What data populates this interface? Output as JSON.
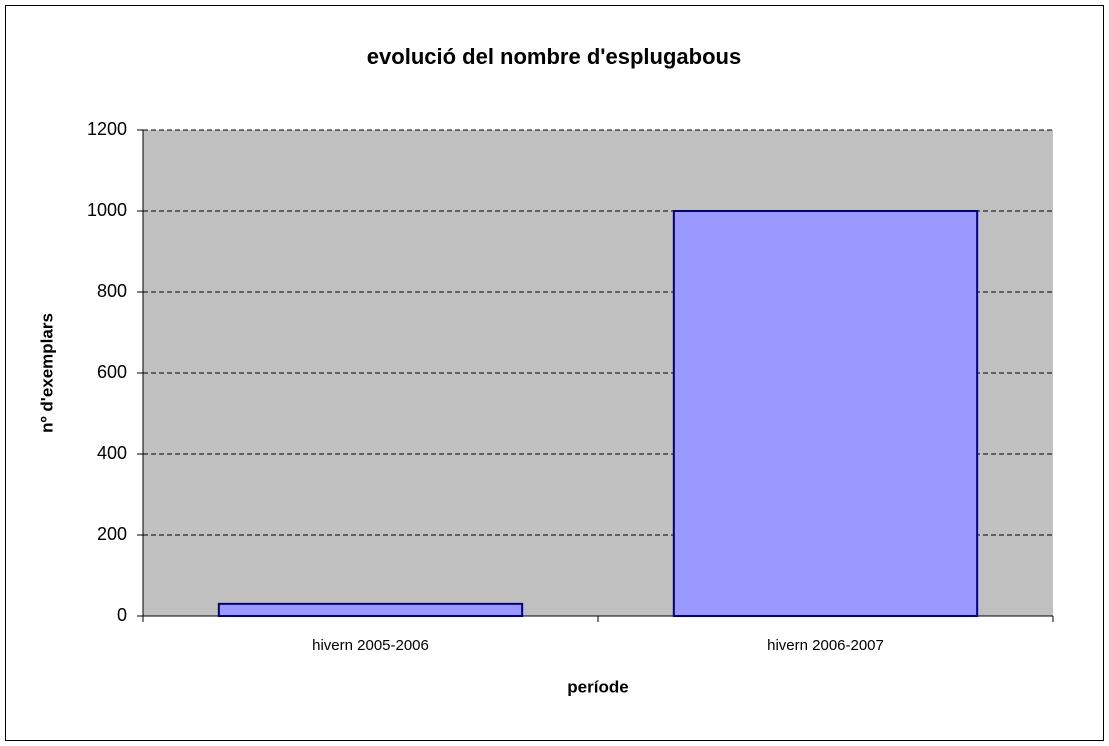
{
  "chart_data": {
    "type": "bar",
    "title": "evolució del nombre d'esplugabous",
    "x_label": "període",
    "y_label": "nº d'exemplars",
    "categories": [
      "hivern 2005-2006",
      "hivern 2006-2007"
    ],
    "values": [
      30,
      1000
    ],
    "color": "#9999ff",
    "ylim": [
      0,
      1200
    ],
    "yticks": [
      0,
      200,
      400,
      600,
      800,
      1000,
      1200
    ],
    "grid": true
  }
}
